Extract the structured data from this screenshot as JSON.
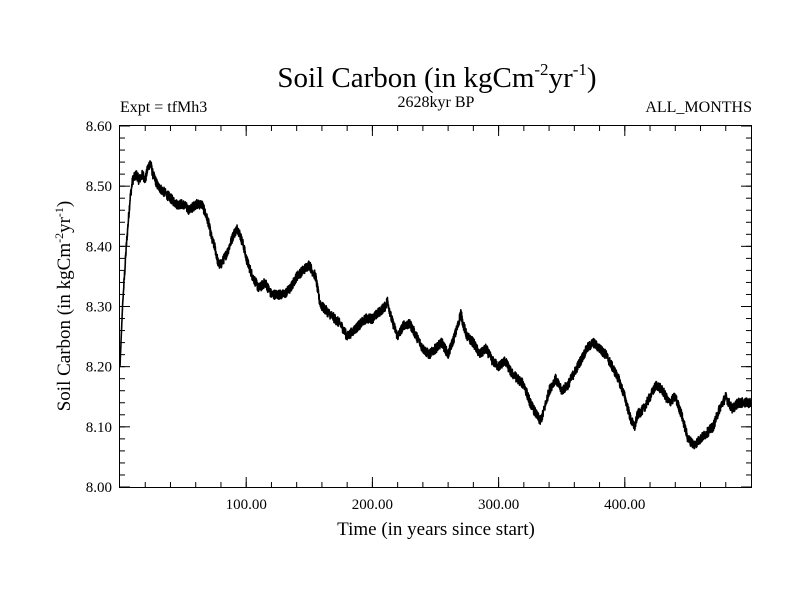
{
  "colors": {
    "line": "#000000",
    "background": "#ffffff",
    "axis": "#000000"
  },
  "header": {
    "title_main": "Soil Carbon (in kgCm",
    "title_exp1": "-2",
    "title_mid": "yr",
    "title_exp2": "-1",
    "title_close": ")",
    "expt": "Expt = tfMh3",
    "period": "2628kyr BP",
    "months": "ALL_MONTHS"
  },
  "axes": {
    "xlabel": "Time (in years since start)",
    "ylabel_main": "Soil Carbon (in kgCm",
    "ylabel_exp1": "-2",
    "ylabel_mid": "yr",
    "ylabel_exp2": "-1",
    "ylabel_close": ")"
  },
  "chart_data": {
    "type": "line",
    "title": "Soil Carbon (in kgCm-2yr-1)",
    "xlabel": "Time (in years since start)",
    "ylabel": "Soil Carbon (in kgCm-2yr-1)",
    "xlim": [
      0,
      500
    ],
    "ylim": [
      8.0,
      8.6
    ],
    "xticks": [
      100,
      200,
      300,
      400
    ],
    "xtick_labels": [
      "100.00",
      "200.00",
      "300.00",
      "400.00"
    ],
    "yticks": [
      8.0,
      8.1,
      8.2,
      8.3,
      8.4,
      8.5,
      8.6
    ],
    "ytick_labels": [
      "8.00",
      "8.10",
      "8.20",
      "8.30",
      "8.40",
      "8.50",
      "8.60"
    ],
    "noise_amplitude": 0.008,
    "series": [
      {
        "name": "Soil Carbon",
        "x": [
          0,
          2,
          5,
          8,
          10,
          13,
          15,
          18,
          20,
          22,
          24,
          26,
          30,
          35,
          40,
          45,
          50,
          55,
          60,
          65,
          70,
          73,
          75,
          78,
          80,
          85,
          90,
          93,
          95,
          98,
          100,
          105,
          110,
          115,
          120,
          125,
          130,
          135,
          140,
          145,
          150,
          152,
          155,
          158,
          160,
          165,
          170,
          175,
          180,
          185,
          190,
          195,
          200,
          205,
          210,
          212,
          215,
          220,
          225,
          230,
          235,
          240,
          245,
          250,
          255,
          260,
          265,
          268,
          270,
          272,
          275,
          280,
          285,
          290,
          295,
          300,
          305,
          310,
          315,
          320,
          325,
          330,
          333,
          335,
          340,
          345,
          350,
          355,
          360,
          365,
          370,
          375,
          380,
          385,
          390,
          395,
          400,
          405,
          408,
          410,
          415,
          420,
          425,
          430,
          435,
          440,
          445,
          450,
          455,
          460,
          465,
          470,
          475,
          480,
          485,
          490,
          495,
          500
        ],
        "y": [
          8.2,
          8.3,
          8.4,
          8.48,
          8.51,
          8.52,
          8.51,
          8.52,
          8.51,
          8.53,
          8.54,
          8.52,
          8.5,
          8.49,
          8.48,
          8.47,
          8.47,
          8.46,
          8.47,
          8.47,
          8.44,
          8.41,
          8.4,
          8.37,
          8.37,
          8.39,
          8.42,
          8.43,
          8.42,
          8.4,
          8.38,
          8.35,
          8.33,
          8.34,
          8.32,
          8.32,
          8.32,
          8.33,
          8.35,
          8.36,
          8.37,
          8.36,
          8.35,
          8.31,
          8.3,
          8.29,
          8.28,
          8.27,
          8.25,
          8.26,
          8.27,
          8.28,
          8.28,
          8.29,
          8.3,
          8.31,
          8.28,
          8.25,
          8.27,
          8.27,
          8.25,
          8.23,
          8.22,
          8.23,
          8.24,
          8.22,
          8.25,
          8.27,
          8.29,
          8.27,
          8.25,
          8.24,
          8.22,
          8.23,
          8.21,
          8.2,
          8.21,
          8.19,
          8.18,
          8.17,
          8.14,
          8.12,
          8.11,
          8.12,
          8.16,
          8.18,
          8.16,
          8.17,
          8.19,
          8.21,
          8.23,
          8.24,
          8.23,
          8.22,
          8.2,
          8.18,
          8.15,
          8.11,
          8.1,
          8.12,
          8.13,
          8.15,
          8.17,
          8.16,
          8.14,
          8.15,
          8.12,
          8.08,
          8.07,
          8.08,
          8.09,
          8.1,
          8.13,
          8.15,
          8.13,
          8.14,
          8.14,
          8.14
        ]
      }
    ]
  }
}
